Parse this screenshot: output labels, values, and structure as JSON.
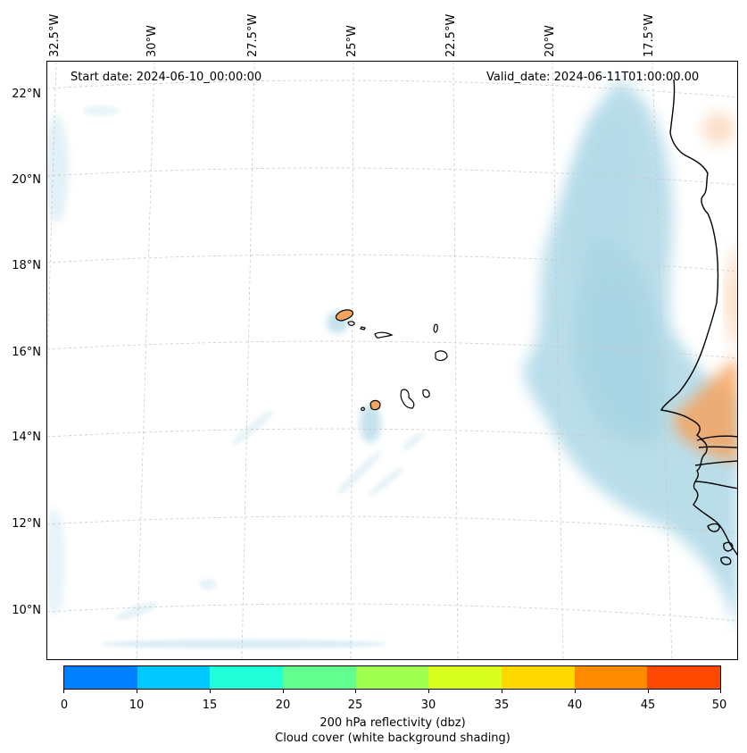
{
  "map": {
    "start_date": "Start date: 2024-06-10_00:00:00",
    "valid_date": "Valid_date: 2024-06-11T01:00:00.00",
    "longitude_labels": [
      "32.5°W",
      "30°W",
      "27.5°W",
      "25°W",
      "22.5°W",
      "20°W",
      "17.5°W"
    ],
    "latitude_labels": [
      "22°N",
      "20°N",
      "18°N",
      "16°N",
      "14°N",
      "12°N",
      "10°N"
    ],
    "features": [
      "cape-verde-islands",
      "west-africa-coastline",
      "cloud-cover-shading",
      "reflectivity-contours"
    ]
  },
  "colorbar": {
    "ticks": [
      "0",
      "10",
      "15",
      "20",
      "25",
      "30",
      "35",
      "40",
      "45",
      "50"
    ],
    "colors": [
      "#0080ff",
      "#00c8ff",
      "#20ffd8",
      "#60ff90",
      "#a0ff50",
      "#d8ff20",
      "#ffd800",
      "#ff8c00",
      "#ff4800"
    ],
    "label_line1": "200 hPa reflectivity (dbz)",
    "label_line2": "Cloud cover (white background shading)"
  },
  "colors": {
    "cloud": "#add8e6",
    "land_reflectivity": "#f4a460"
  }
}
